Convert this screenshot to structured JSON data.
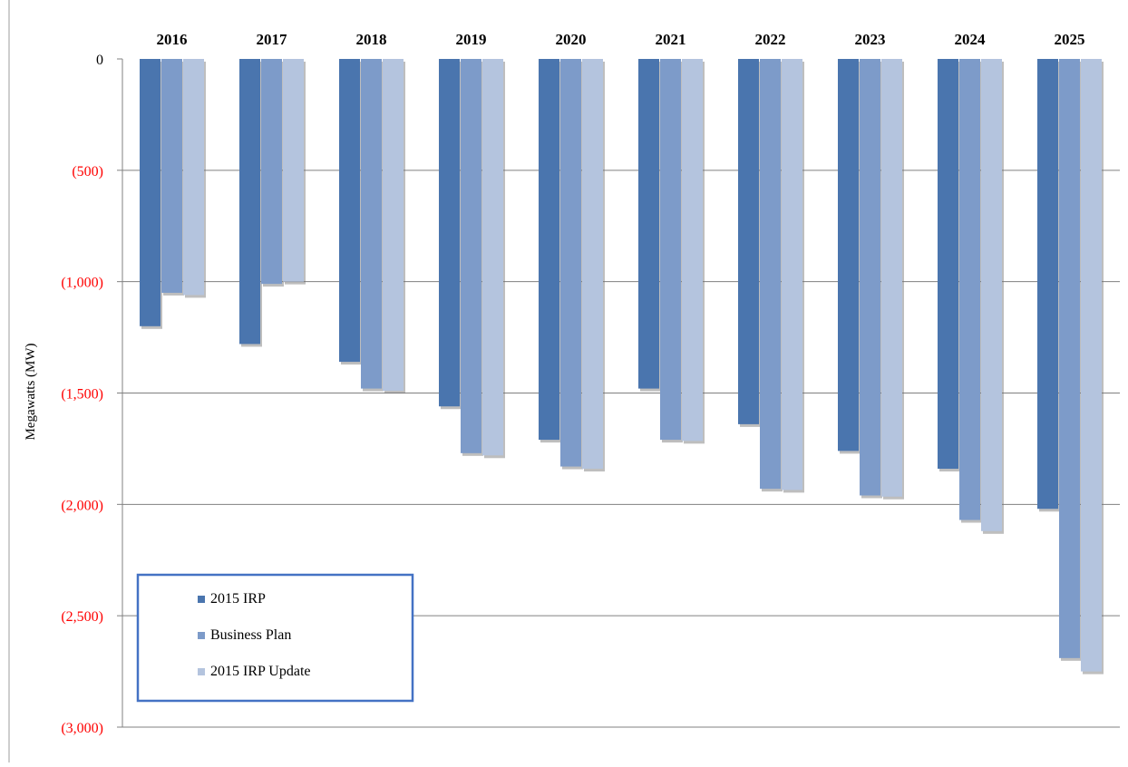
{
  "chart_data": {
    "type": "bar",
    "categories": [
      "2016",
      "2017",
      "2018",
      "2019",
      "2020",
      "2021",
      "2022",
      "2023",
      "2024",
      "2025"
    ],
    "series": [
      {
        "name": "2015 IRP",
        "color": "#4A75AE",
        "values": [
          -1200,
          -1280,
          -1360,
          -1560,
          -1710,
          -1480,
          -1640,
          -1760,
          -1840,
          -2020
        ]
      },
      {
        "name": "Business Plan",
        "color": "#7D9BC9",
        "values": [
          -1050,
          -1010,
          -1480,
          -1770,
          -1830,
          -1710,
          -1930,
          -1960,
          -2070,
          -2690
        ]
      },
      {
        "name": "2015 IRP Update",
        "color": "#B4C4DE",
        "values": [
          -1060,
          -1000,
          -1490,
          -1780,
          -1840,
          -1715,
          -1935,
          -1965,
          -2120,
          -2750
        ]
      }
    ],
    "xlabel": "",
    "ylabel": "Megawatts (MW)",
    "ylim": [
      -3000,
      0
    ],
    "yticks": [
      0,
      -500,
      -1000,
      -1500,
      -2000,
      -2500,
      -3000
    ],
    "ytick_labels": [
      "0",
      "(500)",
      "(1,000)",
      "(1,500)",
      "(2,000)",
      "(2,500)",
      "(3,000)"
    ],
    "ytick_colors": {
      "zero": "#000000",
      "negative": "#FF0000"
    },
    "grid": true,
    "category_labels_position": "top",
    "legend_position": "bottom-left",
    "colors": {
      "gridline": "#808080",
      "axis": "#808080",
      "legend_border": "#4472C4"
    }
  }
}
